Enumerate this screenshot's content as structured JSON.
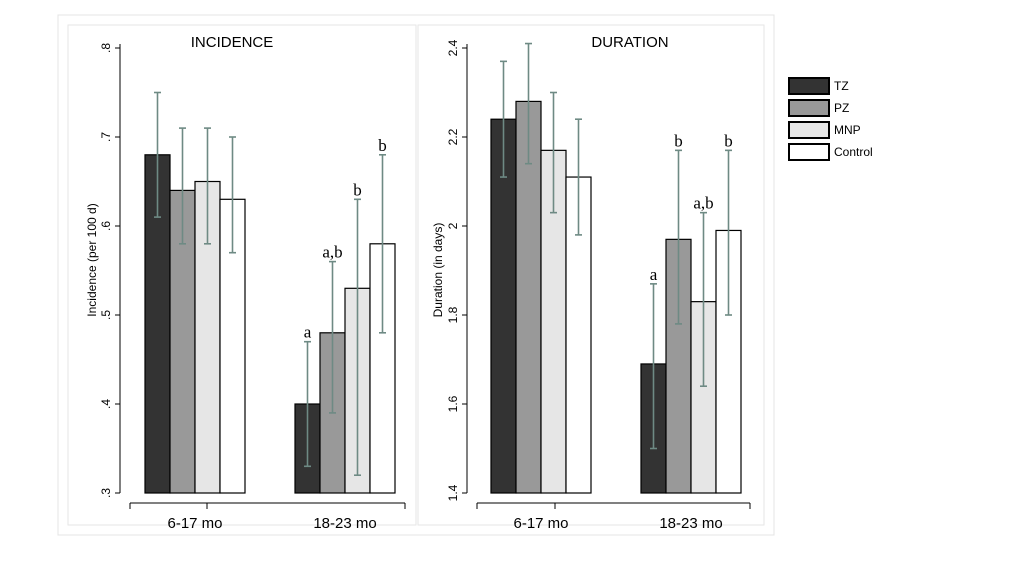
{
  "chart_data": [
    {
      "type": "bar",
      "title": "INCIDENCE",
      "ylabel": "Incidence (per 100 d)",
      "ylim": [
        0.3,
        0.8
      ],
      "yticks": [
        ".3",
        ".4",
        ".5",
        ".6",
        ".7",
        ".8"
      ],
      "ytick_values": [
        0.3,
        0.4,
        0.5,
        0.6,
        0.7,
        0.8
      ],
      "categories": [
        "6-17 mo",
        "18-23 mo"
      ],
      "series": [
        {
          "name": "TZ",
          "values": [
            0.68,
            0.4
          ],
          "ci_low": [
            0.61,
            0.33
          ],
          "ci_high": [
            0.75,
            0.47
          ],
          "labels": [
            "",
            "a"
          ]
        },
        {
          "name": "PZ",
          "values": [
            0.64,
            0.48
          ],
          "ci_low": [
            0.58,
            0.39
          ],
          "ci_high": [
            0.71,
            0.56
          ],
          "labels": [
            "",
            "a,b"
          ]
        },
        {
          "name": "MNP",
          "values": [
            0.65,
            0.53
          ],
          "ci_low": [
            0.58,
            0.32
          ],
          "ci_high": [
            0.71,
            0.63
          ],
          "labels": [
            "",
            "b"
          ]
        },
        {
          "name": "Control",
          "values": [
            0.63,
            0.58
          ],
          "ci_low": [
            0.57,
            0.48
          ],
          "ci_high": [
            0.7,
            0.68
          ],
          "labels": [
            "",
            "b"
          ]
        }
      ]
    },
    {
      "type": "bar",
      "title": "DURATION",
      "ylabel": "Duration (in days)",
      "ylim": [
        1.4,
        2.4
      ],
      "yticks": [
        "1.4",
        "1.6",
        "1.8",
        "2",
        "2.2",
        "2.4"
      ],
      "ytick_values": [
        1.4,
        1.6,
        1.8,
        2.0,
        2.2,
        2.4
      ],
      "categories": [
        "6-17 mo",
        "18-23 mo"
      ],
      "series": [
        {
          "name": "TZ",
          "values": [
            2.24,
            1.69
          ],
          "ci_low": [
            2.11,
            1.5
          ],
          "ci_high": [
            2.37,
            1.87
          ],
          "labels": [
            "",
            "a"
          ]
        },
        {
          "name": "PZ",
          "values": [
            2.28,
            1.97
          ],
          "ci_low": [
            2.14,
            1.78
          ],
          "ci_high": [
            2.41,
            2.17
          ],
          "labels": [
            "",
            "b"
          ]
        },
        {
          "name": "MNP",
          "values": [
            2.17,
            1.83
          ],
          "ci_low": [
            2.03,
            1.64
          ],
          "ci_high": [
            2.3,
            2.03
          ],
          "labels": [
            "",
            "a,b"
          ]
        },
        {
          "name": "Control",
          "values": [
            2.11,
            1.99
          ],
          "ci_low": [
            1.98,
            1.8
          ],
          "ci_high": [
            2.24,
            2.17
          ],
          "labels": [
            "",
            "b"
          ]
        }
      ]
    }
  ],
  "legend": {
    "items": [
      {
        "name": "TZ",
        "color": "#333333"
      },
      {
        "name": "PZ",
        "color": "#999999"
      },
      {
        "name": "MNP",
        "color": "#e6e6e6"
      },
      {
        "name": "Control",
        "color": "#ffffff"
      }
    ]
  },
  "colors": {
    "series": [
      "#333333",
      "#999999",
      "#e6e6e6",
      "#ffffff"
    ],
    "error_bar": "#6e8a84"
  }
}
